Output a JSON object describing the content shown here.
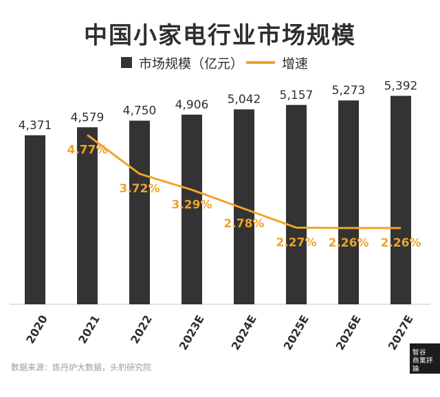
{
  "title": "中国小家电行业市场规模",
  "legend": {
    "bar_label": "市场规模（亿元）",
    "line_label": "增速"
  },
  "colors": {
    "bar": "#333333",
    "line": "#f0a326",
    "text": "#2e2e2e"
  },
  "source": "数据来源：炼丹炉大数据，头豹研究院",
  "logo": {
    "line1": "智谷",
    "line2": "商業評論"
  },
  "chart_data": {
    "type": "bar",
    "categories": [
      "2020",
      "2021",
      "2022",
      "2023E",
      "2024E",
      "2025E",
      "2026E",
      "2027E"
    ],
    "series": [
      {
        "name": "市场规模（亿元）",
        "type": "bar",
        "values": [
          4371,
          4579,
          4750,
          4906,
          5042,
          5157,
          5273,
          5392
        ],
        "labels": [
          "4,371",
          "4,579",
          "4,750",
          "4,906",
          "5,042",
          "5,157",
          "5,273",
          "5,392"
        ]
      },
      {
        "name": "增速",
        "type": "line",
        "values": [
          null,
          4.77,
          3.72,
          3.29,
          2.78,
          2.27,
          2.26,
          2.26
        ],
        "labels": [
          "",
          "4.77%",
          "3.72%",
          "3.29%",
          "2.78%",
          "2.27%",
          "2.26%",
          "2.26%"
        ]
      }
    ],
    "legend_position": "top-center",
    "grid": false
  }
}
